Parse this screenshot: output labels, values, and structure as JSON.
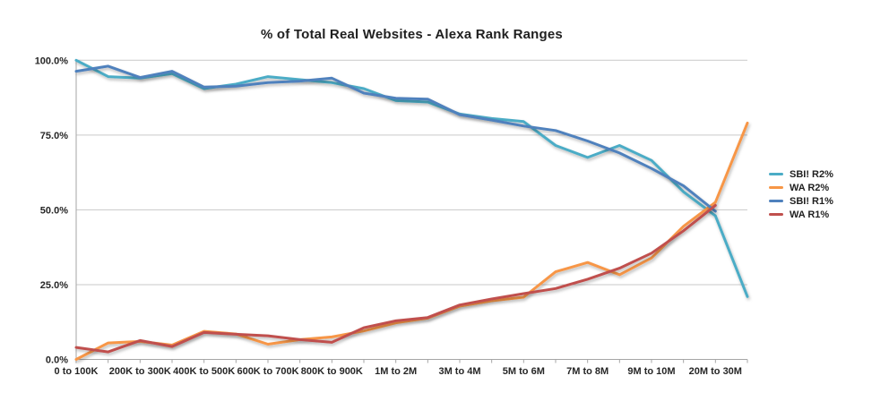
{
  "chart_data": {
    "type": "line",
    "title": "% of Total Real Websites - Alexa Rank Ranges",
    "x_axis": {
      "labels": [
        "0 to 100K",
        "",
        "200K to 300K",
        "",
        "400K to 500K",
        "",
        "600K to 700K",
        "",
        "800K to 900K",
        "",
        "1M to 2M",
        "",
        "3M to 4M",
        "",
        "5M to 6M",
        "",
        "7M to 8M",
        "",
        "9M to 10M",
        "",
        "20M to 30M",
        ""
      ],
      "visible_labels": [
        "0 to 100K",
        "200K to 300K",
        "400K to 500K",
        "600K to 700K",
        "800K to 900K",
        "1M to 2M",
        "3M to 4M",
        "5M to 6M",
        "7M to 8M",
        "9M to 10M",
        "20M to 30M"
      ]
    },
    "y_axis": {
      "tick_labels": [
        "0.0%",
        "25.0%",
        "50.0%",
        "75.0%",
        "100.0%"
      ],
      "tick_values": [
        0,
        25,
        50,
        75,
        100
      ],
      "min": 0,
      "max": 100,
      "unit": "%"
    },
    "grid": true,
    "legend_position": "right",
    "series": [
      {
        "name": "SBI! R2%",
        "color": "#4BACC6",
        "values": [
          100,
          94.5,
          94.0,
          95.5,
          90.5,
          92.0,
          94.5,
          93.5,
          92.5,
          90.5,
          86.5,
          86.0,
          82.0,
          80.5,
          79.5,
          71.5,
          67.5,
          71.5,
          66.5,
          56.0,
          48.0,
          21.0
        ]
      },
      {
        "name": "WA R2%",
        "color": "#F79646",
        "values": [
          0,
          5.5,
          6.0,
          4.8,
          9.4,
          8.5,
          5.1,
          6.6,
          7.5,
          9.5,
          12.2,
          13.8,
          17.8,
          19.6,
          20.8,
          29.3,
          32.4,
          28.3,
          33.9,
          44.5,
          52.5,
          79.0
        ]
      },
      {
        "name": "SBI! R1%",
        "color": "#4F81BD",
        "values": [
          96.3,
          98.0,
          94.2,
          96.3,
          91.0,
          91.3,
          92.5,
          93.0,
          94.0,
          89.0,
          87.3,
          87.0,
          81.8,
          80.0,
          78.0,
          76.5,
          73.0,
          69.0,
          63.8,
          58.0,
          49.5
        ]
      },
      {
        "name": "WA R1%",
        "color": "#C0504D",
        "values": [
          4.0,
          2.5,
          6.3,
          4.3,
          9.0,
          8.4,
          7.9,
          6.6,
          5.7,
          10.6,
          12.9,
          14.0,
          18.2,
          20.2,
          22.0,
          23.7,
          26.8,
          30.5,
          35.5,
          43.0,
          51.5
        ]
      }
    ]
  }
}
